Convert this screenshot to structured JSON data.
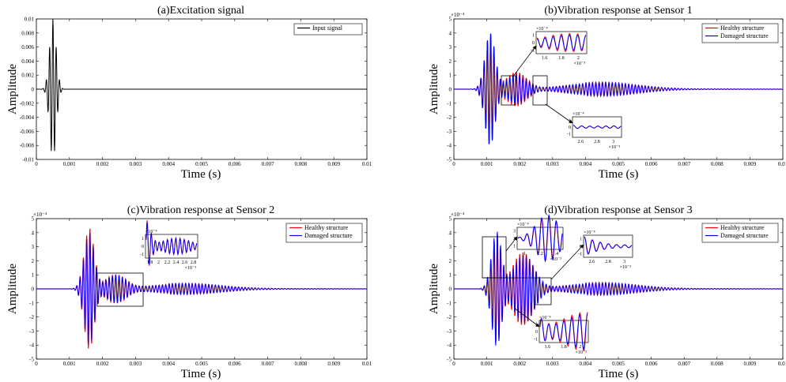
{
  "colors": {
    "healthy": "#ff0000",
    "damaged": "#0000ff",
    "input": "#000000"
  },
  "chart_data": [
    {
      "type": "line",
      "title": "(a)Excitation signal",
      "xlabel": "Time (s)",
      "ylabel": "Amplitude",
      "xlim": [
        0,
        0.01
      ],
      "ylim": [
        -0.01,
        0.01
      ],
      "xticks": [
        "0",
        "0.001",
        "0.002",
        "0.003",
        "0.004",
        "0.005",
        "0.006",
        "0.007",
        "0.008",
        "0.009",
        "0.01"
      ],
      "yticks": [
        "-0.01",
        "-0.008",
        "-0.006",
        "-0.004",
        "-0.002",
        "0",
        "0.002",
        "0.004",
        "0.006",
        "0.008",
        "0.01"
      ],
      "legend": {
        "placement": "top-right",
        "entries": [
          "Input signal"
        ]
      },
      "series": [
        {
          "name": "Input signal",
          "signal": "tone-burst",
          "center": 0.0005,
          "width": 0.00014,
          "frequency": 10000,
          "peak": 0.01
        }
      ]
    },
    {
      "type": "line",
      "title": "(b)Vibration response at Sensor 1",
      "xlabel": "Time (s)",
      "ylabel": "Amplitude",
      "exponent": "×10⁻⁴",
      "xlim": [
        0,
        0.01
      ],
      "ylim": [
        -5,
        5
      ],
      "xticks": [
        "0",
        "0.001",
        "0.002",
        "0.003",
        "0.004",
        "0.005",
        "0.006",
        "0.007",
        "0.008",
        "0.009",
        "0.01"
      ],
      "yticks": [
        "-5",
        "-4",
        "-3",
        "-2",
        "-1",
        "0",
        "1",
        "2",
        "3",
        "4",
        "5"
      ],
      "legend": {
        "placement": "top-right",
        "entries": [
          "Healthy structure",
          "Damaged structure"
        ]
      },
      "series": [
        {
          "name": "Healthy structure",
          "peak": 3.9,
          "trough": -4.1,
          "main_packet_center": 0.0011,
          "secondary_packet_center": 0.0019
        },
        {
          "name": "Damaged structure",
          "peak": 3.9,
          "trough": -4.1,
          "main_packet_center": 0.0011,
          "secondary_packet_center": 0.0019
        }
      ],
      "insets": [
        {
          "exponent": "×10⁻⁴",
          "xticks": [
            "1.6",
            "1.8",
            "2"
          ],
          "xexponent": "×10⁻³",
          "yticks": [
            "-1",
            "0",
            "1"
          ]
        },
        {
          "exponent": "×10⁻⁴",
          "xticks": [
            "2.6",
            "2.8",
            "3"
          ],
          "xexponent": "×10⁻³",
          "yticks": [
            "-1",
            "0",
            "1"
          ]
        }
      ]
    },
    {
      "type": "line",
      "title": "(c)Vibration response at Sensor 2",
      "xlabel": "Time (s)",
      "ylabel": "Amplitude",
      "exponent": "×10⁻⁴",
      "xlim": [
        0,
        0.01
      ],
      "ylim": [
        -5,
        5
      ],
      "xticks": [
        "0",
        "0.001",
        "0.002",
        "0.003",
        "0.004",
        "0.005",
        "0.006",
        "0.007",
        "0.008",
        "0.009",
        "0.01"
      ],
      "yticks": [
        "-5",
        "-4",
        "-3",
        "-2",
        "-1",
        "0",
        "1",
        "2",
        "3",
        "4",
        "5"
      ],
      "legend": {
        "placement": "top-right",
        "entries": [
          "Healthy structure",
          "Damaged structure"
        ]
      },
      "series": [
        {
          "name": "Healthy structure",
          "peak": 4.1,
          "trough": -4.4,
          "main_packet_center": 0.0016,
          "secondary_packet_center": 0.0024
        },
        {
          "name": "Damaged structure",
          "peak": 4.0,
          "trough": -4.1,
          "main_packet_center": 0.0016,
          "secondary_packet_center": 0.0024
        }
      ],
      "insets": [
        {
          "exponent": "×10⁻⁴",
          "xticks": [
            "1.8",
            "2",
            "2.2",
            "2.4",
            "2.6",
            "2.8"
          ],
          "xexponent": "×10⁻³",
          "yticks": [
            "-1",
            "0",
            "1"
          ]
        }
      ]
    },
    {
      "type": "line",
      "title": "(d)Vibration response at Sensor 3",
      "xlabel": "Time (s)",
      "ylabel": "Amplitude",
      "exponent": "×10⁻⁴",
      "xlim": [
        0,
        0.01
      ],
      "ylim": [
        -5,
        5
      ],
      "xticks": [
        "0",
        "0.001",
        "0.002",
        "0.003",
        "0.004",
        "0.005",
        "0.006",
        "0.007",
        "0.008",
        "0.009",
        "0.01"
      ],
      "yticks": [
        "-5",
        "-4",
        "-3",
        "-2",
        "-1",
        "0",
        "1",
        "2",
        "3",
        "4",
        "5"
      ],
      "legend": {
        "placement": "top-right",
        "entries": [
          "Healthy structure",
          "Damaged structure"
        ]
      },
      "series": [
        {
          "name": "Healthy structure",
          "peak": 3.2,
          "trough": -4.2,
          "main_packet_center": 0.0013,
          "secondary_packet_center": 0.0021
        },
        {
          "name": "Damaged structure",
          "peak": 3.2,
          "trough": -4.2,
          "main_packet_center": 0.0013,
          "secondary_packet_center": 0.0021
        }
      ],
      "insets": [
        {
          "exponent": "×10⁻⁴",
          "xticks": [
            "1",
            "1.2",
            "1.4"
          ],
          "xexponent": "×10⁻³",
          "yticks": [
            "1",
            "2",
            "3"
          ]
        },
        {
          "exponent": "×10⁻⁴",
          "xticks": [
            "2.6",
            "2.8",
            "3"
          ],
          "xexponent": "×10⁻³",
          "yticks": [
            "-1",
            "0",
            "1"
          ]
        },
        {
          "exponent": "×10⁻⁴",
          "xticks": [
            "1.6",
            "1.8",
            "2"
          ],
          "xexponent": "×10⁻³",
          "yticks": [
            "-1",
            "0",
            "1"
          ]
        }
      ]
    }
  ]
}
